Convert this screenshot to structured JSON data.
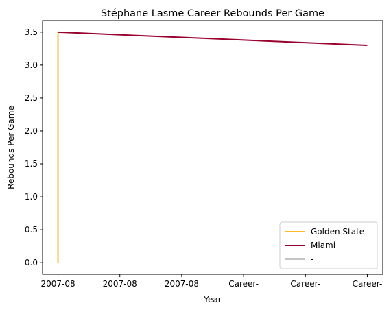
{
  "chart_data": {
    "type": "line",
    "title": "Stéphane Lasme Career Rebounds Per Game",
    "xlabel": "Year",
    "ylabel": "Rebounds Per Game",
    "x_tick_labels": [
      "2007-08",
      "2007-08",
      "2007-08",
      "Career-",
      "Career-",
      "Career-"
    ],
    "ylim": [
      -0.175,
      3.675
    ],
    "y_ticks": [
      0.0,
      0.5,
      1.0,
      1.5,
      2.0,
      2.5,
      3.0,
      3.5
    ],
    "y_tick_labels": [
      "0.0",
      "0.5",
      "1.0",
      "1.5",
      "2.0",
      "2.5",
      "3.0",
      "3.5"
    ],
    "xlim": [
      -0.25,
      5.25
    ],
    "grid": false,
    "legend_position": "lower-right",
    "series": [
      {
        "name": "Golden State",
        "color": "#FDB927",
        "points": [
          {
            "x": 0,
            "y": 0.0
          },
          {
            "x": 0,
            "y": 3.5
          }
        ]
      },
      {
        "name": "Miami",
        "color": "#98002E",
        "points": [
          {
            "x": 0,
            "y": 3.5
          },
          {
            "x": 5,
            "y": 3.3
          }
        ]
      },
      {
        "name": "-",
        "color": "#C4C4C4",
        "points": []
      }
    ]
  }
}
